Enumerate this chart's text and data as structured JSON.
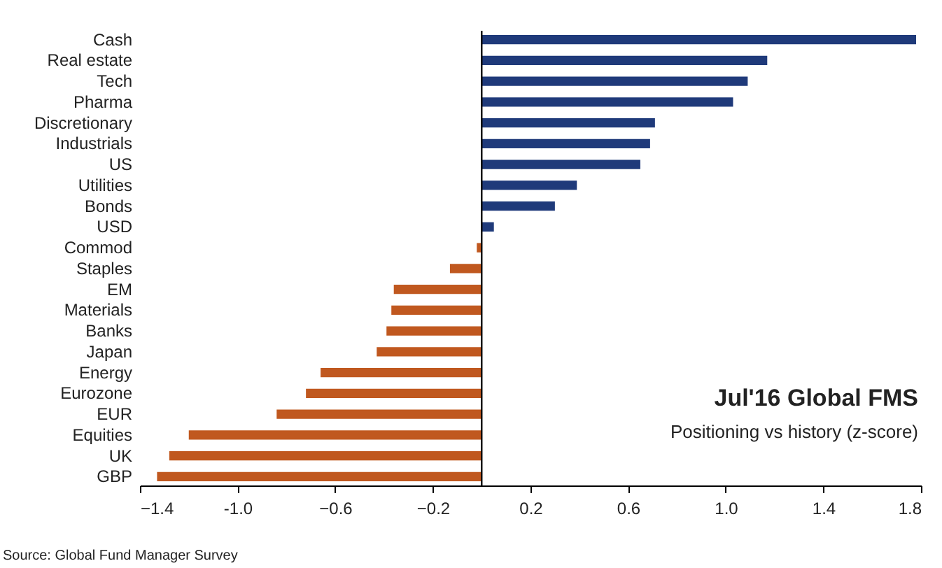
{
  "chart_data": {
    "type": "bar",
    "orientation": "horizontal",
    "categories": [
      "Cash",
      "Real estate",
      "Tech",
      "Pharma",
      "Discretionary",
      "Industrials",
      "US",
      "Utilities",
      "Bonds",
      "USD",
      "Commod",
      "Staples",
      "EM",
      "Materials",
      "Banks",
      "Japan",
      "Energy",
      "Eurozone",
      "EUR",
      "Equities",
      "UK",
      "GBP"
    ],
    "values": [
      1.78,
      1.17,
      1.09,
      1.03,
      0.71,
      0.69,
      0.65,
      0.39,
      0.3,
      0.05,
      -0.02,
      -0.13,
      -0.36,
      -0.37,
      -0.39,
      -0.43,
      -0.66,
      -0.72,
      -0.84,
      -1.2,
      -1.28,
      -1.33
    ],
    "colors": [
      "#1f3a7a",
      "#1f3a7a",
      "#1f3a7a",
      "#1f3a7a",
      "#1f3a7a",
      "#1f3a7a",
      "#1f3a7a",
      "#1f3a7a",
      "#1f3a7a",
      "#1f3a7a",
      "#c0581f",
      "#c0581f",
      "#c0581f",
      "#c0581f",
      "#c0581f",
      "#c0581f",
      "#c0581f",
      "#c0581f",
      "#c0581f",
      "#c0581f",
      "#c0581f",
      "#c0581f"
    ],
    "xlim": [
      -1.4,
      1.8
    ],
    "xticks": [
      -1.4,
      {
        "value": -1,
        "label": "-1.0"
      },
      -0.6,
      -0.2,
      0.2,
      0.6,
      {
        "value": 1,
        "label": "1.0"
      },
      1.4,
      1.8
    ],
    "ref_lines": [
      {
        "axis": "x",
        "value": 0,
        "color": "#000000"
      }
    ],
    "title": "Jul'16 Global FMS",
    "subtitle": "Positioning vs history (z-score)",
    "annotations": [
      "Source: Global Fund Manager Survey"
    ],
    "grid": false
  }
}
